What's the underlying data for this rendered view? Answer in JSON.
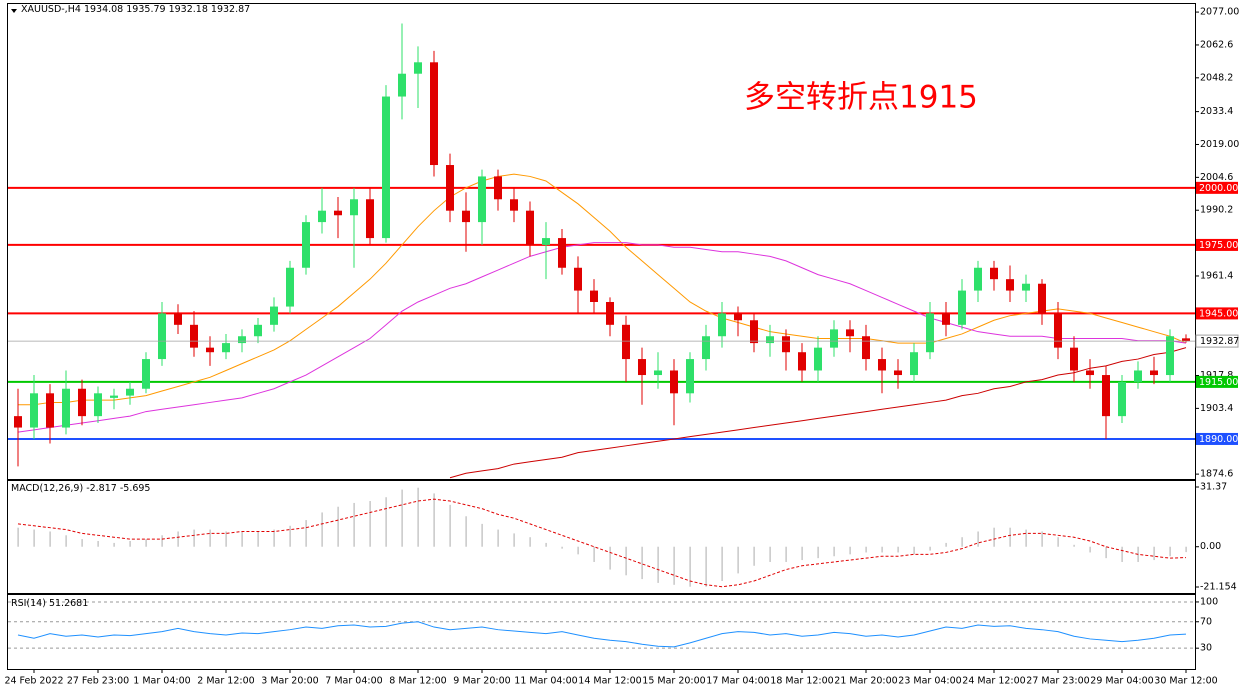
{
  "chart_data": [
    {
      "type": "candlestick",
      "title": "XAUUSD-,H4",
      "annotation": "多空转折点1915",
      "annotation_color": "#ff0000",
      "categories": [
        null,
        "24 Feb 2022",
        null,
        null,
        null,
        "27 Feb 23:00",
        null,
        null,
        null,
        "1 Mar 04:00",
        null,
        null,
        null,
        "2 Mar 12:00",
        null,
        null,
        null,
        "3 Mar 20:00",
        null,
        null,
        null,
        "7 Mar 04:00",
        null,
        null,
        null,
        "8 Mar 12:00",
        null,
        null,
        null,
        "9 Mar 20:00",
        null,
        null,
        null,
        "11 Mar 04:00",
        null,
        null,
        null,
        "14 Mar 12:00",
        null,
        null,
        null,
        "15 Mar 20:00",
        null,
        null,
        null,
        "17 Mar 04:00",
        null,
        null,
        null,
        "18 Mar 12:00",
        null,
        null,
        null,
        "21 Mar 20:00",
        null,
        null,
        null,
        "23 Mar 04:00",
        null,
        null,
        null,
        "24 Mar 12:00",
        null,
        null,
        null,
        "27 Mar 23:00",
        null,
        null,
        null,
        "29 Mar 04:00",
        null,
        null,
        null,
        "30 Mar 12:00"
      ],
      "open": [
        1900,
        1895,
        1910,
        1895,
        1912,
        1900,
        1908,
        1909,
        1912,
        1925,
        1945,
        1940,
        1930,
        1928,
        1932,
        1935,
        1940,
        1948,
        1965,
        1985,
        1990,
        1988,
        1995,
        1978,
        2040,
        2050,
        2055,
        2010,
        1990,
        1985,
        2005,
        1995,
        1990,
        1975,
        1978,
        1965,
        1955,
        1950,
        1940,
        1925,
        1918,
        1920,
        1910,
        1925,
        1935,
        1945,
        1942,
        1932,
        1935,
        1928,
        1920,
        1930,
        1938,
        1935,
        1925,
        1920,
        1918,
        1928,
        1945,
        1940,
        1955,
        1965,
        1960,
        1955,
        1958,
        1945,
        1930,
        1920,
        1918,
        1900,
        1915,
        1920,
        1918,
        1934.08
      ],
      "high": [
        1912,
        1918,
        1914,
        1920,
        1916,
        1913,
        1912,
        1915,
        1928,
        1950,
        1949,
        1946,
        1935,
        1936,
        1938,
        1943,
        1952,
        1968,
        1988,
        2000,
        1996,
        2000,
        2000,
        2045,
        2072,
        2062,
        2060,
        2015,
        1998,
        2008,
        2008,
        2000,
        1994,
        1985,
        1982,
        1970,
        1960,
        1952,
        1944,
        1930,
        1928,
        1925,
        1928,
        1940,
        1950,
        1948,
        1945,
        1940,
        1938,
        1932,
        1935,
        1942,
        1942,
        1940,
        1930,
        1925,
        1932,
        1950,
        1950,
        1960,
        1968,
        1968,
        1966,
        1962,
        1960,
        1950,
        1935,
        1925,
        1922,
        1918,
        1924,
        1926,
        1938,
        1935.79
      ],
      "low": [
        1878,
        1890,
        1888,
        1892,
        1896,
        1897,
        1903,
        1905,
        1910,
        1922,
        1936,
        1926,
        1922,
        1925,
        1928,
        1932,
        1937,
        1945,
        1962,
        1980,
        1978,
        1965,
        1975,
        1976,
        2030,
        2035,
        2005,
        1985,
        1972,
        1975,
        1990,
        1985,
        1970,
        1960,
        1962,
        1945,
        1945,
        1935,
        1915,
        1905,
        1912,
        1896,
        1906,
        1920,
        1930,
        1935,
        1928,
        1926,
        1920,
        1915,
        1915,
        1926,
        1928,
        1920,
        1910,
        1912,
        1915,
        1925,
        1935,
        1938,
        1950,
        1955,
        1950,
        1950,
        1940,
        1925,
        1915,
        1912,
        1890,
        1897,
        1912,
        1914,
        1915,
        1932.18
      ],
      "close": [
        1895,
        1910,
        1895,
        1912,
        1900,
        1910,
        1909,
        1912,
        1925,
        1945,
        1940,
        1930,
        1928,
        1932,
        1935,
        1940,
        1948,
        1965,
        1985,
        1990,
        1988,
        1995,
        1978,
        2040,
        2050,
        2055,
        2010,
        1990,
        1985,
        2005,
        1995,
        1990,
        1975,
        1978,
        1965,
        1955,
        1950,
        1940,
        1925,
        1918,
        1920,
        1910,
        1925,
        1935,
        1945,
        1942,
        1932,
        1935,
        1928,
        1920,
        1930,
        1938,
        1935,
        1925,
        1920,
        1918,
        1928,
        1945,
        1940,
        1955,
        1965,
        1960,
        1955,
        1958,
        1945,
        1930,
        1920,
        1918,
        1900,
        1915,
        1920,
        1918,
        1935,
        1932.87
      ],
      "up_color": "#2ee06a",
      "down_color": "#e00000",
      "lines": [
        {
          "color": "#ff9900",
          "values": [
            1905,
            1905,
            1906,
            1906,
            1907,
            1907,
            1907,
            1908,
            1909,
            1911,
            1913,
            1915,
            1917,
            1920,
            1923,
            1926,
            1929,
            1933,
            1938,
            1943,
            1948,
            1954,
            1960,
            1967,
            1975,
            1983,
            1990,
            1996,
            2000,
            2003,
            2005,
            2006,
            2005,
            2003,
            1998,
            1993,
            1987,
            1981,
            1974,
            1968,
            1962,
            1956,
            1950,
            1946,
            1943,
            1941,
            1939,
            1937,
            1936,
            1935,
            1934,
            1934,
            1934,
            1934,
            1933,
            1932,
            1932,
            1932,
            1934,
            1936,
            1939,
            1942,
            1944,
            1945,
            1946,
            1947,
            1946,
            1945,
            1943,
            1941,
            1939,
            1937,
            1935,
            1932
          ]
        },
        {
          "color": "#dd33dd",
          "values": [
            1893,
            1894,
            1895,
            1896,
            1897,
            1898,
            1899,
            1900,
            1902,
            1903,
            1904,
            1905,
            1906,
            1907,
            1908,
            1910,
            1912,
            1915,
            1918,
            1922,
            1926,
            1930,
            1934,
            1940,
            1946,
            1950,
            1953,
            1956,
            1958,
            1961,
            1964,
            1967,
            1970,
            1972,
            1974,
            1975,
            1976,
            1976,
            1976,
            1975,
            1975,
            1974,
            1974,
            1973,
            1972,
            1972,
            1971,
            1970,
            1968,
            1965,
            1962,
            1960,
            1958,
            1955,
            1952,
            1949,
            1946,
            1943,
            1941,
            1939,
            1937,
            1936,
            1935,
            1935,
            1935,
            1934,
            1934,
            1934,
            1934,
            1934,
            1933,
            1933,
            1933,
            1932
          ]
        },
        {
          "color": "#cc0000",
          "values": [
            null,
            null,
            null,
            null,
            null,
            null,
            null,
            null,
            null,
            null,
            null,
            null,
            null,
            null,
            null,
            null,
            null,
            null,
            null,
            null,
            null,
            null,
            null,
            null,
            null,
            null,
            null,
            1873,
            1875,
            1876,
            1877,
            1879,
            1880,
            1881,
            1882,
            1884,
            1885,
            1886,
            1887,
            1888,
            1889,
            1890,
            1891,
            1892,
            1893,
            1894,
            1895,
            1896,
            1897,
            1898,
            1899,
            1900,
            1901,
            1902,
            1903,
            1904,
            1905,
            1906,
            1907,
            1909,
            1910,
            1912,
            1913,
            1915,
            1916,
            1918,
            1919,
            1921,
            1922,
            1924,
            1925,
            1927,
            1928,
            1930
          ]
        }
      ],
      "levels": [
        {
          "value": 2000,
          "label": "2000.00",
          "color": "#ff0000"
        },
        {
          "value": 1975,
          "label": "1975.00",
          "color": "#ff0000"
        },
        {
          "value": 1945,
          "label": "1945.00",
          "color": "#ff0000"
        },
        {
          "value": 1915,
          "label": "1915.00",
          "color": "#00c800"
        },
        {
          "value": 1890,
          "label": "1890.00",
          "color": "#1e50ff"
        }
      ],
      "current_color": "#a0a0a0",
      "ylim": [
        1872.9,
        2080.1
      ],
      "yticks": [
        {
          "value": 2077,
          "label": "2077.00"
        },
        2062.6,
        2048.2,
        2033.4,
        {
          "value": 2019,
          "label": "2019.00"
        },
        2004.6,
        1990.2,
        1961.4,
        1917.8,
        1903.4,
        1874.6
      ],
      "grid": false
    },
    {
      "type": "macd",
      "title": "MACD(12,26,9)",
      "hist_color": "#b8b8b8",
      "signal_color": "#e00000",
      "values": [
        10,
        9,
        8,
        6,
        4,
        3,
        2,
        3,
        4,
        6,
        8,
        9,
        9,
        8,
        8,
        8,
        9,
        11,
        14,
        18,
        21,
        23,
        24,
        26,
        30,
        31,
        28,
        22,
        16,
        12,
        9,
        7,
        5,
        2,
        -1,
        -4,
        -8,
        -12,
        -15,
        -17,
        -19,
        -20,
        -21,
        -21,
        -18,
        -14,
        -10,
        -8,
        -8,
        -7,
        -6,
        -5,
        -4,
        -3,
        -3,
        -3,
        -4,
        -2,
        2,
        5,
        8,
        10,
        10,
        9,
        8,
        5,
        1,
        -3,
        -6,
        -8,
        -8,
        -7,
        -5,
        -2.817
      ],
      "signal": [
        12,
        11,
        10,
        9,
        7,
        6,
        5,
        4,
        4,
        4,
        5,
        6,
        7,
        7,
        8,
        8,
        8,
        9,
        10,
        12,
        14,
        16,
        18,
        20,
        22,
        24,
        25,
        24,
        22,
        20,
        17,
        15,
        12,
        9,
        6,
        3,
        0,
        -3,
        -6,
        -9,
        -12,
        -15,
        -18,
        -20,
        -21,
        -20,
        -18,
        -15,
        -12,
        -10,
        -9,
        -8,
        -7,
        -6,
        -5,
        -5,
        -4,
        -4,
        -3,
        -1,
        2,
        4,
        6,
        7,
        7,
        6,
        5,
        3,
        0,
        -2,
        -4,
        -5,
        -6,
        -5.695
      ],
      "ylim": [
        -23.78,
        34.0
      ],
      "yticks": [
        31.37,
        {
          "value": 0,
          "label": "0.00"
        },
        -21.154
      ],
      "grid": false
    },
    {
      "type": "line",
      "title": "RSI(14)",
      "color": "#1e90ff",
      "values": [
        50,
        45,
        52,
        48,
        50,
        47,
        50,
        49,
        52,
        55,
        60,
        55,
        52,
        50,
        53,
        52,
        55,
        58,
        62,
        60,
        64,
        65,
        62,
        63,
        68,
        70,
        62,
        58,
        60,
        62,
        58,
        56,
        54,
        52,
        55,
        50,
        45,
        42,
        40,
        36,
        33,
        32,
        38,
        45,
        52,
        55,
        54,
        50,
        52,
        48,
        50,
        54,
        52,
        48,
        50,
        47,
        50,
        56,
        62,
        60,
        65,
        63,
        64,
        60,
        58,
        55,
        48,
        44,
        42,
        40,
        42,
        45,
        50,
        51.2681
      ],
      "ylim": [
        0,
        109
      ],
      "yticks": [
        100,
        70,
        30
      ],
      "grid": true
    }
  ]
}
